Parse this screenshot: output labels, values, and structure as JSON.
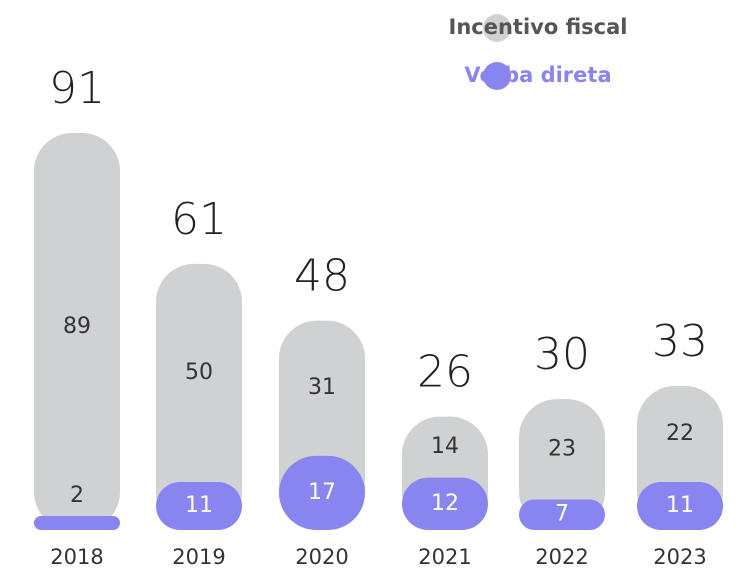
{
  "chart_data": {
    "type": "stacked-bar",
    "categories": [
      "2018",
      "2019",
      "2020",
      "2021",
      "2022",
      "2023"
    ],
    "series": [
      {
        "name": "Verba direta",
        "color": "#8985f0",
        "values": [
          2,
          11,
          17,
          12,
          7,
          11
        ]
      },
      {
        "name": "Incentivo fiscal",
        "color": "#d0d1d3",
        "values": [
          89,
          50,
          31,
          14,
          23,
          22
        ]
      }
    ],
    "totals": [
      91,
      61,
      48,
      26,
      30,
      33
    ]
  }
}
